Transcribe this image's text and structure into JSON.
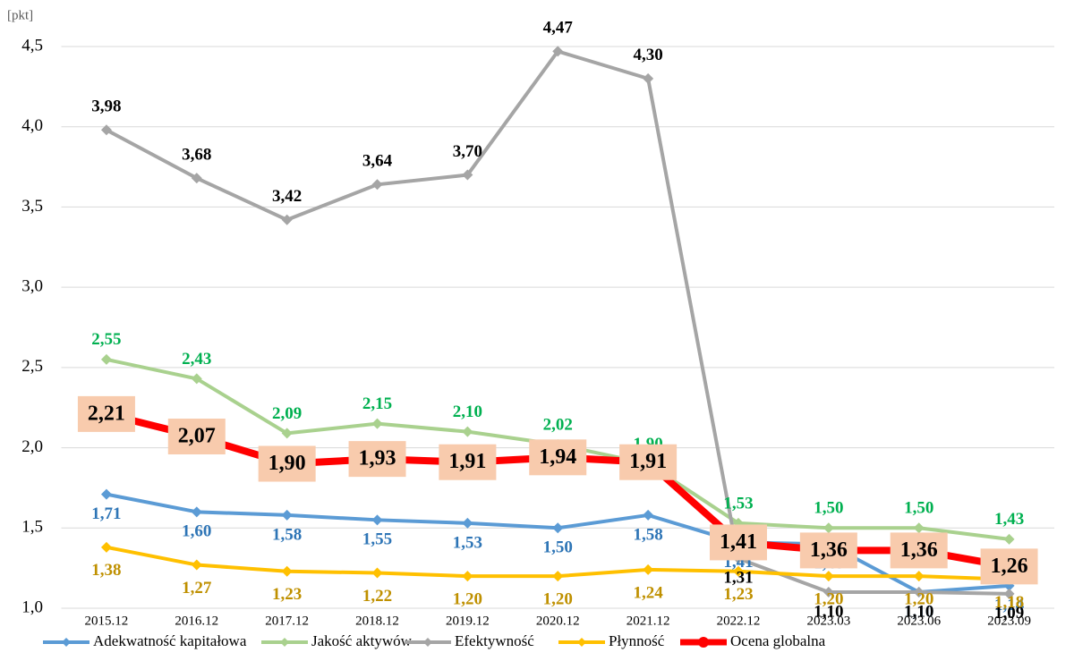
{
  "chart_data": {
    "type": "line",
    "y_unit": "[pkt]",
    "categories": [
      "2015.12",
      "2016.12",
      "2017.12",
      "2018.12",
      "2019.12",
      "2020.12",
      "2021.12",
      "2022.12",
      "2023.03",
      "2023.06",
      "2023.09"
    ],
    "series": [
      {
        "name": "Adekwatność kapitałowa",
        "color": "#5b9bd5",
        "label_color": "#2e75b6",
        "marker": "diamond",
        "values": [
          1.71,
          1.6,
          1.58,
          1.55,
          1.53,
          1.5,
          1.58,
          1.41,
          1.4,
          1.1,
          1.14
        ],
        "value_labels": [
          "1,71",
          "1,60",
          "1,58",
          "1,55",
          "1,53",
          "1,50",
          "1,58",
          "1,41",
          "1,40",
          "1,10",
          "1,14"
        ]
      },
      {
        "name": "Jakość aktywów",
        "color": "#a9d18e",
        "label_color": "#00b050",
        "marker": "diamond",
        "values": [
          2.55,
          2.43,
          2.09,
          2.15,
          2.1,
          2.02,
          1.9,
          1.53,
          1.5,
          1.5,
          1.43
        ],
        "value_labels": [
          "2,55",
          "2,43",
          "2,09",
          "2,15",
          "2,10",
          "2,02",
          "1,90",
          "1,53",
          "1,50",
          "1,50",
          "1,43"
        ]
      },
      {
        "name": "Efektywność",
        "color": "#a5a5a5",
        "label_color": "#000000",
        "marker": "diamond",
        "values": [
          3.98,
          3.68,
          3.42,
          3.64,
          3.7,
          4.47,
          4.3,
          1.31,
          1.1,
          1.1,
          1.09
        ],
        "value_labels": [
          "3,98",
          "3,68",
          "3,42",
          "3,64",
          "3,70",
          "4,47",
          "4,30",
          "1,31",
          "1,10",
          "1,10",
          "1,09"
        ]
      },
      {
        "name": "Płynność",
        "color": "#ffc000",
        "label_color": "#bf9000",
        "marker": "diamond",
        "values": [
          1.38,
          1.27,
          1.23,
          1.22,
          1.2,
          1.2,
          1.24,
          1.23,
          1.2,
          1.2,
          1.18
        ],
        "value_labels": [
          "1,38",
          "1,27",
          "1,23",
          "1,22",
          "1,20",
          "1,20",
          "1,24",
          "1,23",
          "1,20",
          "1,20",
          "1,18"
        ]
      },
      {
        "name": "Ocena globalna",
        "color": "#ff0000",
        "label_color": "#000000",
        "marker": "circle",
        "label_box": "#f8cbad",
        "values": [
          2.21,
          2.07,
          1.9,
          1.93,
          1.91,
          1.94,
          1.91,
          1.41,
          1.36,
          1.36,
          1.26
        ],
        "value_labels": [
          "2,21",
          "2,07",
          "1,90",
          "1,93",
          "1,91",
          "1,94",
          "1,91",
          "1,41",
          "1,36",
          "1,36",
          "1,26"
        ]
      }
    ],
    "ylim": [
      1.0,
      4.5
    ],
    "yticks": [
      {
        "value": 1.0,
        "label": "1,0"
      },
      {
        "value": 1.5,
        "label": "1,5"
      },
      {
        "value": 2.0,
        "label": "2,0"
      },
      {
        "value": 2.5,
        "label": "2,5"
      },
      {
        "value": 3.0,
        "label": "3,0"
      },
      {
        "value": 3.5,
        "label": "3,5"
      },
      {
        "value": 4.0,
        "label": "4,0"
      },
      {
        "value": 4.5,
        "label": "4,5"
      }
    ],
    "grid": true,
    "legend": "bottom"
  }
}
